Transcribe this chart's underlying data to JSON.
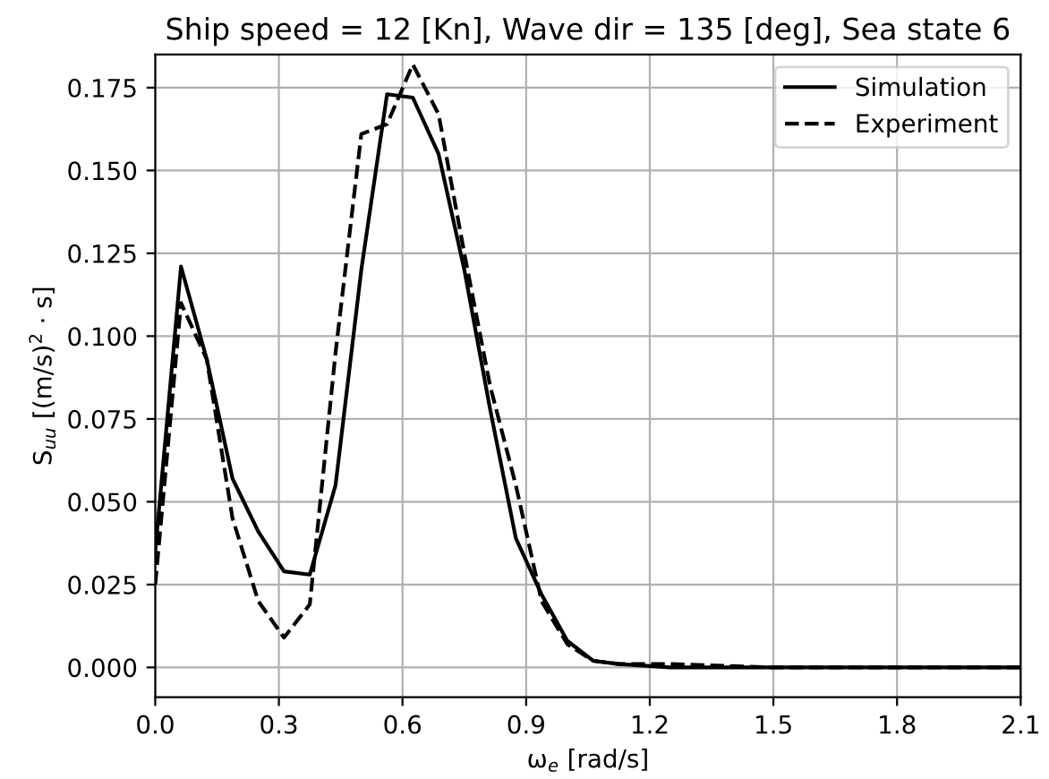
{
  "chart_data": {
    "type": "line",
    "title": "Ship speed = 12 [Kn], Wave dir = 135 [deg], Sea state 6",
    "xlabel": "ω$_{e}$ [rad/s]",
    "ylabel": "S$_{uu}$ [(m/s)$^{2}$ · s]",
    "series": [
      {
        "name": "Simulation",
        "color": "#000000",
        "line_style": "solid",
        "x": [
          0,
          0.0625,
          0.125,
          0.1875,
          0.25,
          0.3125,
          0.375,
          0.4375,
          0.5,
          0.5625,
          0.625,
          0.6875,
          0.75,
          0.8125,
          0.875,
          0.9375,
          1.0,
          1.0625,
          1.125,
          1.25,
          1.5,
          1.75,
          2.1
        ],
        "values": [
          0.035,
          0.121,
          0.093,
          0.057,
          0.041,
          0.029,
          0.028,
          0.055,
          0.12,
          0.173,
          0.172,
          0.155,
          0.12,
          0.078,
          0.039,
          0.022,
          0.008,
          0.002,
          0.001,
          0.0,
          0.0,
          0.0,
          0.0
        ]
      },
      {
        "name": "Experiment",
        "color": "#000000",
        "line_style": "dashed",
        "x": [
          0,
          0.0625,
          0.125,
          0.1875,
          0.25,
          0.3125,
          0.375,
          0.4375,
          0.5,
          0.5625,
          0.625,
          0.6875,
          0.75,
          0.8125,
          0.875,
          0.9375,
          1.0,
          1.0625,
          1.125,
          1.25,
          1.5,
          1.75,
          2.1
        ],
        "values": [
          0.025,
          0.11,
          0.093,
          0.045,
          0.02,
          0.009,
          0.019,
          0.095,
          0.161,
          0.164,
          0.182,
          0.167,
          0.125,
          0.085,
          0.055,
          0.02,
          0.007,
          0.002,
          0.001,
          0.001,
          0.0,
          0.0,
          0.0
        ]
      }
    ],
    "xlim": [
      0,
      2.1
    ],
    "xticks": [
      {
        "value": 0,
        "label": "0.0"
      },
      0.3,
      0.6,
      0.9,
      1.2,
      1.5,
      1.8,
      2.1
    ],
    "ylim": [
      -0.009,
      0.185
    ],
    "yticks": [
      {
        "value": 0,
        "label": "0.000"
      },
      {
        "value": 0.025,
        "label": "0.025"
      },
      {
        "value": 0.05,
        "label": "0.050"
      },
      {
        "value": 0.075,
        "label": "0.075"
      },
      {
        "value": 0.1,
        "label": "0.100"
      },
      {
        "value": 0.125,
        "label": "0.125"
      },
      {
        "value": 0.15,
        "label": "0.150"
      },
      {
        "value": 0.175,
        "label": "0.175"
      }
    ],
    "grid": true,
    "legend": "top right"
  }
}
